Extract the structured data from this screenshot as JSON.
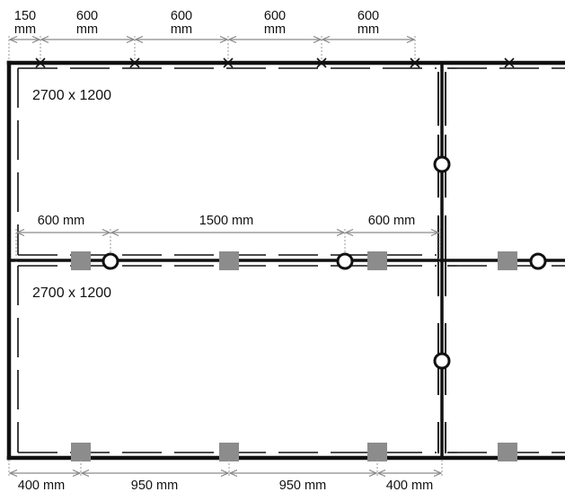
{
  "top_dimensions": [
    {
      "line1": "150",
      "line2": "mm"
    },
    {
      "line1": "600",
      "line2": "mm"
    },
    {
      "line1": "600",
      "line2": "mm"
    },
    {
      "line1": "600",
      "line2": "mm"
    },
    {
      "line1": "600",
      "line2": "mm"
    }
  ],
  "middle_dimensions": [
    "600 mm",
    "1500 mm",
    "600 mm"
  ],
  "bottom_dimensions": [
    "400 mm",
    "950 mm",
    "950 mm",
    "400 mm"
  ],
  "panels": [
    {
      "label": "2700 x 1200"
    },
    {
      "label": "2700 x 1200"
    }
  ],
  "colors": {
    "frame": "#111111",
    "dimension_line": "#8a8a8a",
    "support_square": "#8c8c8c"
  }
}
